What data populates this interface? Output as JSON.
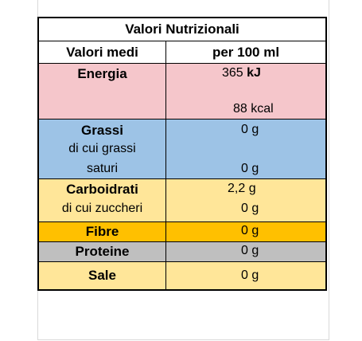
{
  "table": {
    "title": "Valori Nutrizionali",
    "header": {
      "col1": "Valori medi",
      "col2": "per 100 ml"
    },
    "energia": {
      "label": "Energia",
      "value_kj": "365",
      "unit_kj": "kJ",
      "value_kcal": "88 kcal"
    },
    "grassi": {
      "label": "Grassi",
      "sub_line1": "di cui grassi",
      "sub_line2": "saturi",
      "value": "0 g",
      "sub_value": "0 g"
    },
    "carboidrati": {
      "label": "Carboidrati",
      "sub_label": "di cui zuccheri",
      "value": "2,2 g",
      "sub_value": "0 g"
    },
    "fibre": {
      "label": "Fibre",
      "value": "0 g"
    },
    "proteine": {
      "label": "Proteine",
      "value": "0 g"
    },
    "sale": {
      "label": "Sale",
      "value": "0 g"
    }
  },
  "colors": {
    "energia": "#f5c6cb",
    "grassi": "#9dc3e6",
    "carboidrati": "#ffe699",
    "fibre": "#ffc000",
    "proteine": "#bfbfbf",
    "sale": "#ffe699"
  }
}
